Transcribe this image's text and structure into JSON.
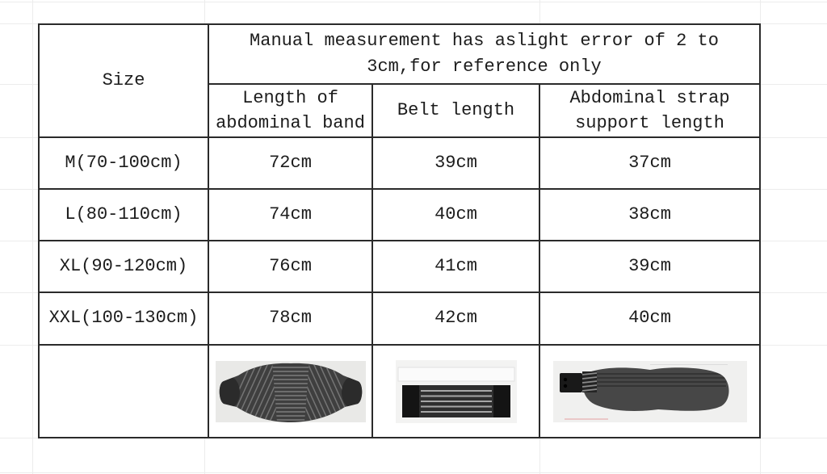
{
  "size_chart": {
    "corner_header": "Size",
    "note_line1": "Manual measurement has aslight error of 2 to",
    "note_line2": "3cm,for reference only",
    "columns": {
      "band": "Length of abdominal band",
      "belt": "Belt length",
      "strap": "Abdominal strap support length"
    },
    "rows": [
      {
        "size": "M(70-100cm)",
        "abdominal_band_length": "72cm",
        "belt_length": "39cm",
        "strap_support_length": "37cm"
      },
      {
        "size": "L(80-110cm)",
        "abdominal_band_length": "74cm",
        "belt_length": "40cm",
        "strap_support_length": "38cm"
      },
      {
        "size": "XL(90-120cm)",
        "abdominal_band_length": "76cm",
        "belt_length": "41cm",
        "strap_support_length": "39cm"
      },
      {
        "size": "XXL(100-130cm)",
        "abdominal_band_length": "78cm",
        "belt_length": "42cm",
        "strap_support_length": "40cm"
      }
    ],
    "product_images": [
      {
        "name": "abdominal-band-photo",
        "depicts": "dark gray ribbed abdominal support band"
      },
      {
        "name": "belt-photo",
        "depicts": "dark elastic belt with black end tabs and light stays"
      },
      {
        "name": "abdominal-strap-photo",
        "depicts": "dark abdominal strap support pad with side buckle"
      }
    ],
    "colors": {
      "table_border": "#2a2a2a",
      "text": "#1c1c1c",
      "sheet_grid_line": "#ececec",
      "photo_background": "#ebebe9",
      "product_dark_gray": "#3f3f3f",
      "product_black": "#151515",
      "pink_accent": "#eac8c8"
    }
  }
}
